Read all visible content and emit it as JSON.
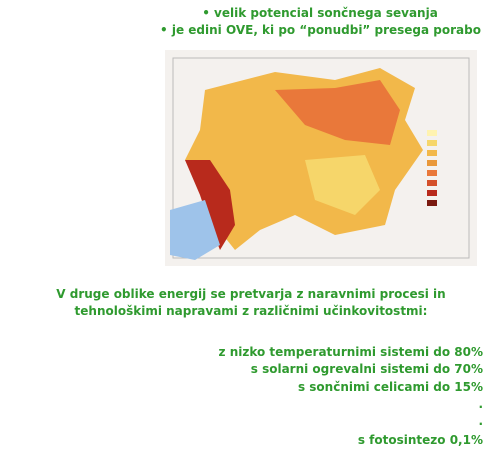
{
  "bullets": [
    "• velik potencial sončnega sevanja",
    "• je edini OVE, ki po “ponudbi” presega porabo"
  ],
  "paragraph": [
    "V druge oblike energij se pretvarja z naravnimi procesi in",
    "tehnološkimi napravami z različnimi učinkovitostmi:"
  ],
  "list": [
    "z nizko temperaturnimi sistemi do 80%",
    "s solarni ogrevalni sistemi do 70%",
    "s sončnimi celicami do 15%",
    ".",
    ".",
    "s fotosintezo 0,1%"
  ]
}
